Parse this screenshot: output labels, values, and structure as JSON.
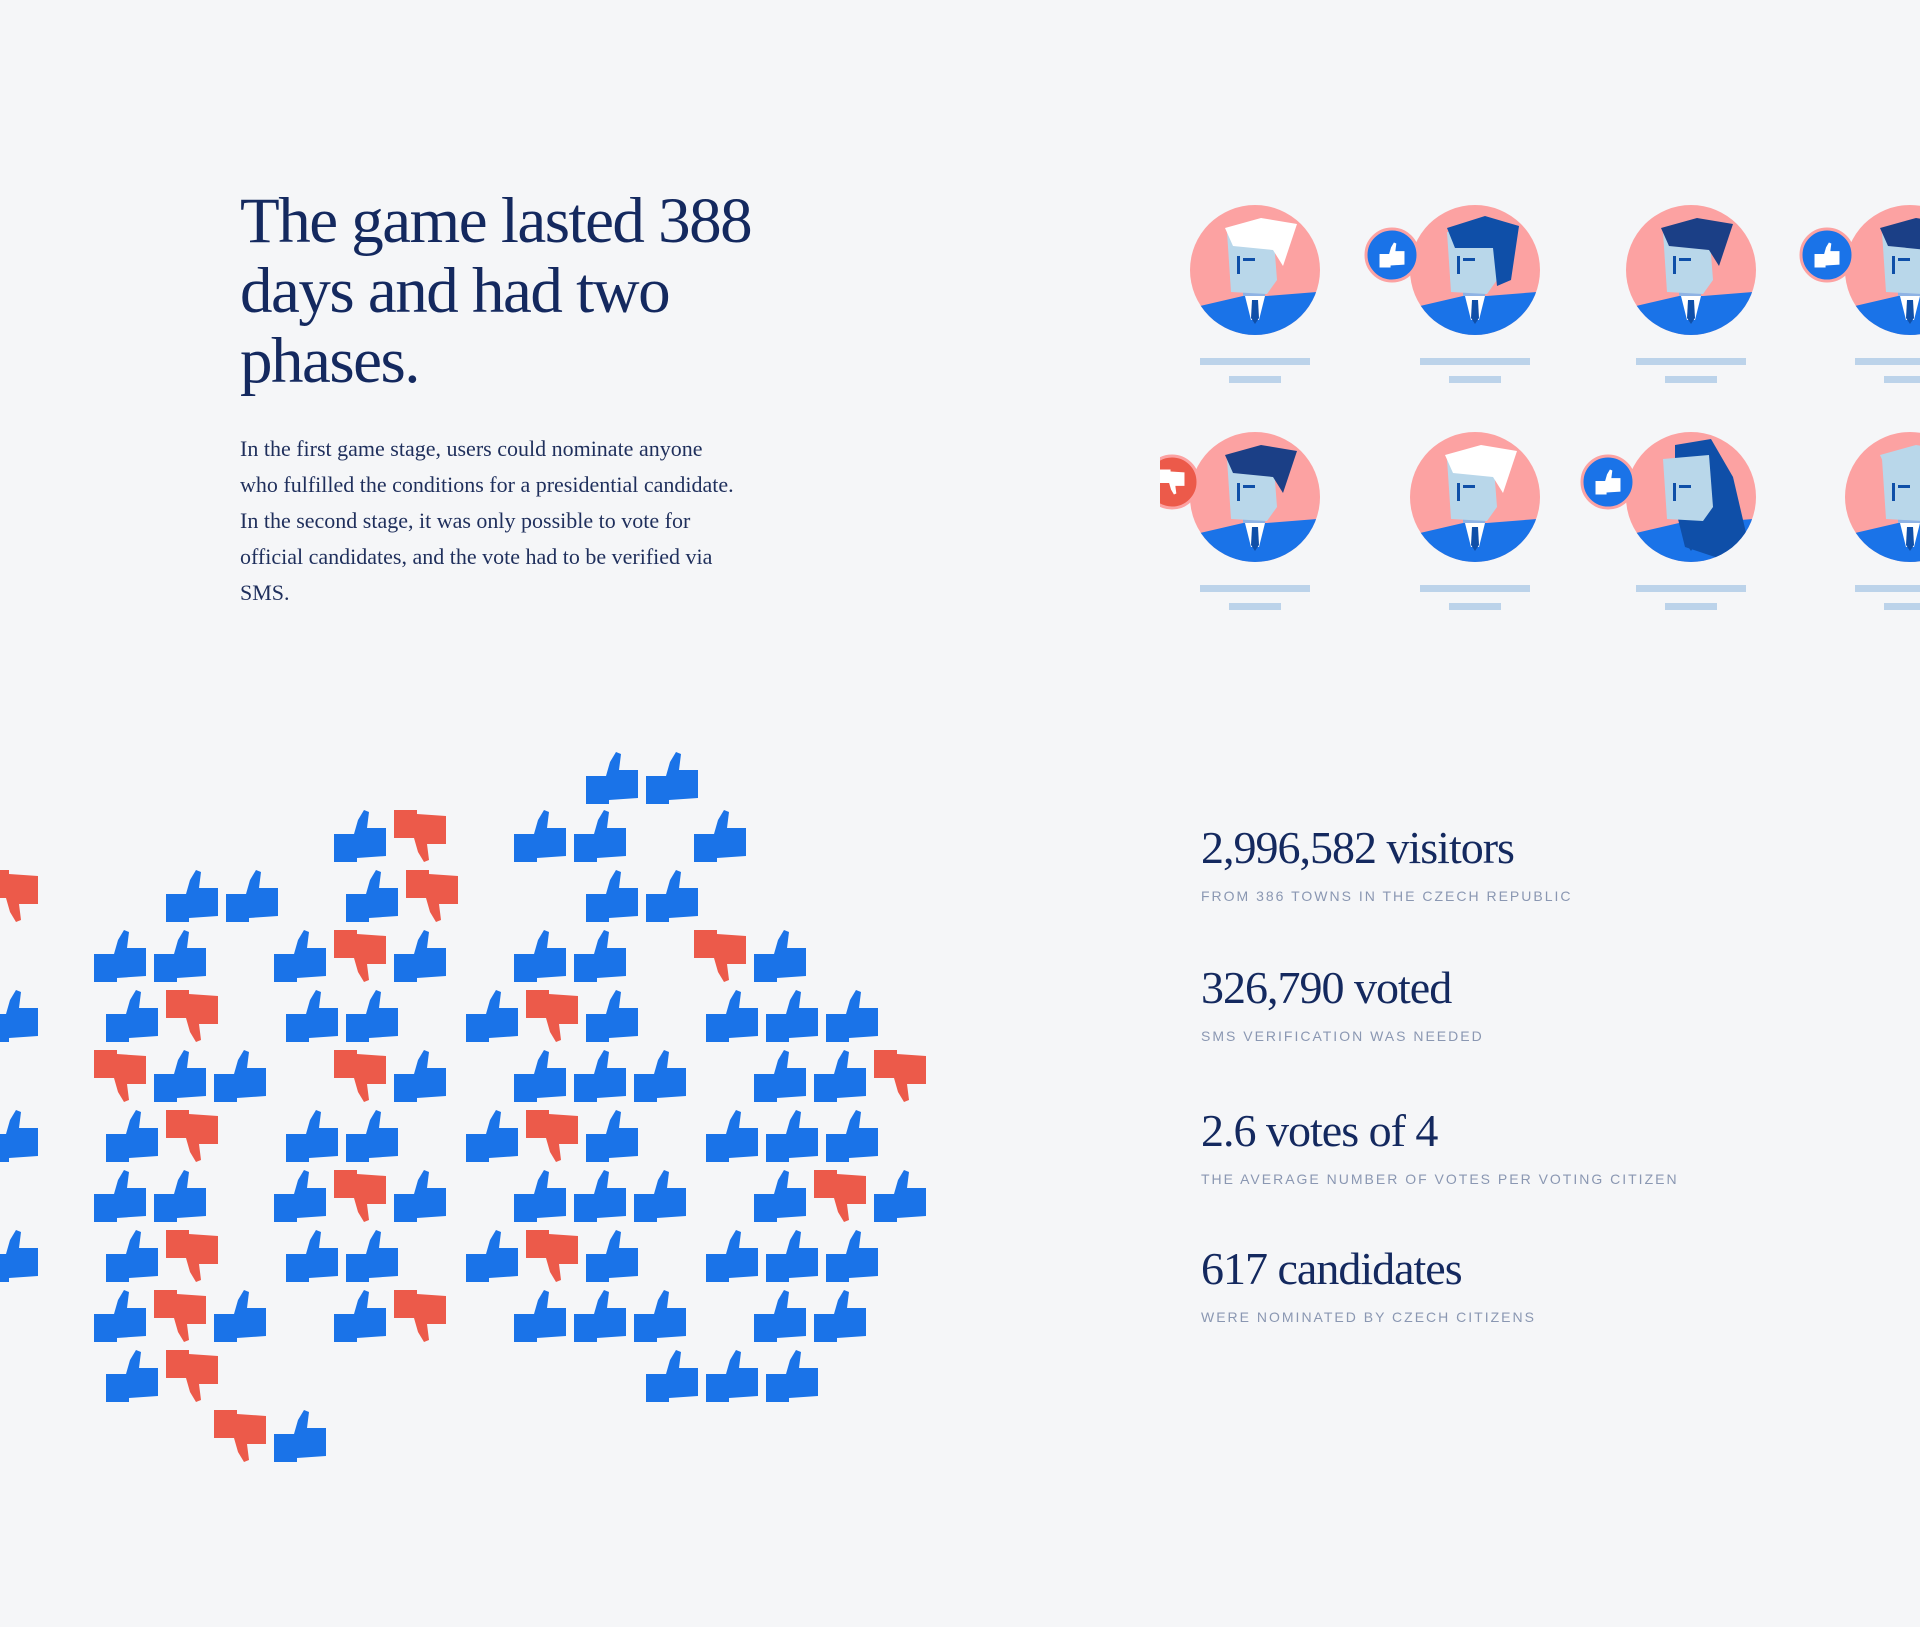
{
  "heading": "The game lasted 388 days and had two phases.",
  "intro": "In the first game stage, users could nominate anyone who fulfilled the conditions for a presidential candidate. In the second stage, it was only possible to vote for official candidates, and the vote had to be verified via SMS.",
  "colors": {
    "navy": "#14295f",
    "blue": "#1a73e8",
    "dark_blue": "#0f4fa8",
    "pale_blue": "#bcd3ea",
    "skin": "#b9d7ea",
    "pink": "#fca2a2",
    "red": "#ec5a4a",
    "caption": "#8a97b2"
  },
  "candidates": [
    {
      "hair": "white",
      "badge": "none",
      "icon": "candidate-avatar"
    },
    {
      "hair": "blue-long",
      "badge": "thumbs-up",
      "icon": "candidate-avatar"
    },
    {
      "hair": "navy",
      "badge": "none",
      "icon": "candidate-avatar"
    },
    {
      "hair": "navy",
      "badge": "thumbs-up",
      "icon": "candidate-avatar"
    },
    {
      "hair": "navy",
      "badge": "thumbs-down",
      "icon": "candidate-avatar"
    },
    {
      "hair": "white",
      "badge": "none",
      "icon": "candidate-avatar"
    },
    {
      "hair": "blue-long-female",
      "badge": "thumbs-up",
      "icon": "candidate-avatar"
    },
    {
      "hair": "pale",
      "badge": "none",
      "icon": "candidate-avatar"
    }
  ],
  "votes": {
    "thumbs_up_icon": "thumbs-up-icon",
    "thumbs_down_icon": "thumbs-down-icon"
  },
  "stats": [
    {
      "value": "2,996,582 visitors",
      "caption": "FROM 386 TOWNS IN THE CZECH REPUBLIC"
    },
    {
      "value": "326,790 voted",
      "caption": "SMS VERIFICATION WAS NEEDED"
    },
    {
      "value": "2.6 votes of 4",
      "caption": "THE AVERAGE NUMBER OF VOTES PER VOTING CITIZEN"
    },
    {
      "value": "617 candidates",
      "caption": "WERE NOMINATED BY CZECH CITIZENS"
    }
  ]
}
